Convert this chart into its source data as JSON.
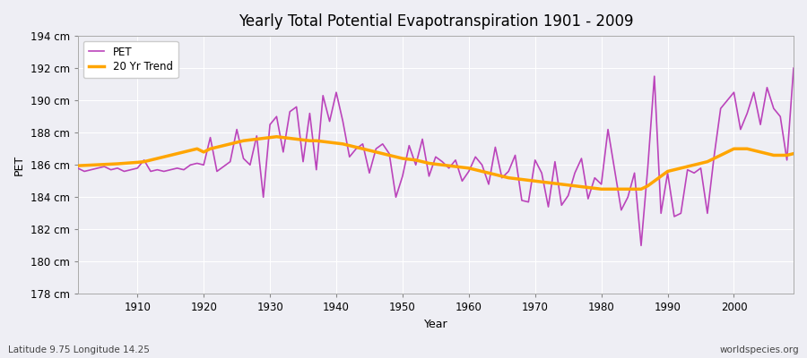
{
  "title": "Yearly Total Potential Evapotranspiration 1901 - 2009",
  "xlabel": "Year",
  "ylabel": "PET",
  "lat_lon_label": "Latitude 9.75 Longitude 14.25",
  "watermark": "worldspecies.org",
  "pet_color": "#BB44BB",
  "trend_color": "#FFA500",
  "background_color": "#EEEEF4",
  "grid_color": "#FFFFFF",
  "ylim": [
    178,
    194
  ],
  "xlim": [
    1901,
    2009
  ],
  "yticks": [
    178,
    180,
    182,
    184,
    186,
    188,
    190,
    192,
    194
  ],
  "xticks": [
    1910,
    1920,
    1930,
    1940,
    1950,
    1960,
    1970,
    1980,
    1990,
    2000
  ],
  "years": [
    1901,
    1902,
    1903,
    1904,
    1905,
    1906,
    1907,
    1908,
    1909,
    1910,
    1911,
    1912,
    1913,
    1914,
    1915,
    1916,
    1917,
    1918,
    1919,
    1920,
    1921,
    1922,
    1923,
    1924,
    1925,
    1926,
    1927,
    1928,
    1929,
    1930,
    1931,
    1932,
    1933,
    1934,
    1935,
    1936,
    1937,
    1938,
    1939,
    1940,
    1941,
    1942,
    1943,
    1944,
    1945,
    1946,
    1947,
    1948,
    1949,
    1950,
    1951,
    1952,
    1953,
    1954,
    1955,
    1956,
    1957,
    1958,
    1959,
    1960,
    1961,
    1962,
    1963,
    1964,
    1965,
    1966,
    1967,
    1968,
    1969,
    1970,
    1971,
    1972,
    1973,
    1974,
    1975,
    1976,
    1977,
    1978,
    1979,
    1980,
    1981,
    1982,
    1983,
    1984,
    1985,
    1986,
    1987,
    1988,
    1989,
    1990,
    1991,
    1992,
    1993,
    1994,
    1995,
    1996,
    1997,
    1998,
    1999,
    2000,
    2001,
    2002,
    2003,
    2004,
    2005,
    2006,
    2007,
    2008,
    2009
  ],
  "pet_values": [
    185.8,
    185.6,
    185.7,
    185.8,
    185.9,
    185.7,
    185.8,
    185.6,
    185.7,
    185.8,
    186.3,
    185.6,
    185.7,
    185.6,
    185.7,
    185.8,
    185.7,
    186.0,
    186.1,
    186.0,
    187.7,
    185.6,
    185.9,
    186.2,
    188.2,
    186.4,
    186.0,
    187.8,
    184.0,
    188.5,
    189.0,
    186.8,
    189.3,
    189.6,
    186.2,
    189.2,
    185.7,
    190.3,
    188.7,
    190.5,
    188.7,
    186.5,
    187.0,
    187.3,
    185.5,
    187.0,
    187.3,
    186.7,
    184.0,
    185.3,
    187.2,
    186.0,
    187.6,
    185.3,
    186.5,
    186.2,
    185.8,
    186.3,
    185.0,
    185.6,
    186.5,
    186.0,
    184.8,
    187.1,
    185.2,
    185.6,
    186.6,
    183.8,
    183.7,
    186.3,
    185.5,
    183.4,
    186.2,
    183.5,
    184.1,
    185.5,
    186.4,
    183.9,
    185.2,
    184.8,
    188.2,
    185.7,
    183.2,
    184.0,
    185.5,
    181.0,
    185.8,
    191.5,
    183.0,
    185.5,
    182.8,
    183.0,
    185.7,
    185.5,
    185.8,
    183.0,
    186.5,
    189.5,
    190.0,
    190.5,
    188.2,
    189.2,
    190.5,
    188.5,
    190.8,
    189.5,
    189.0,
    186.3,
    192.0
  ],
  "trend_values": [
    185.95,
    185.97,
    185.99,
    186.01,
    186.03,
    186.05,
    186.07,
    186.1,
    186.13,
    186.16,
    186.2,
    186.3,
    186.4,
    186.5,
    186.6,
    186.7,
    186.8,
    186.9,
    187.0,
    186.8,
    187.0,
    187.1,
    187.2,
    187.3,
    187.4,
    187.5,
    187.55,
    187.6,
    187.65,
    187.7,
    187.75,
    187.7,
    187.65,
    187.6,
    187.55,
    187.5,
    187.5,
    187.45,
    187.4,
    187.35,
    187.3,
    187.2,
    187.1,
    187.0,
    186.9,
    186.8,
    186.7,
    186.6,
    186.5,
    186.4,
    186.35,
    186.3,
    186.2,
    186.1,
    186.05,
    186.0,
    185.95,
    185.9,
    185.85,
    185.8,
    185.7,
    185.6,
    185.5,
    185.4,
    185.3,
    185.2,
    185.15,
    185.1,
    185.05,
    185.0,
    184.95,
    184.9,
    184.85,
    184.8,
    184.75,
    184.7,
    184.65,
    184.6,
    184.55,
    184.5,
    184.5,
    184.5,
    184.5,
    184.5,
    184.5,
    184.5,
    184.7,
    185.0,
    185.3,
    185.6,
    185.7,
    185.8,
    185.9,
    186.0,
    186.1,
    186.2,
    186.4,
    186.6,
    186.8,
    187.0,
    187.0,
    187.0,
    186.9,
    186.8,
    186.7,
    186.6,
    186.6,
    186.6,
    186.7
  ]
}
